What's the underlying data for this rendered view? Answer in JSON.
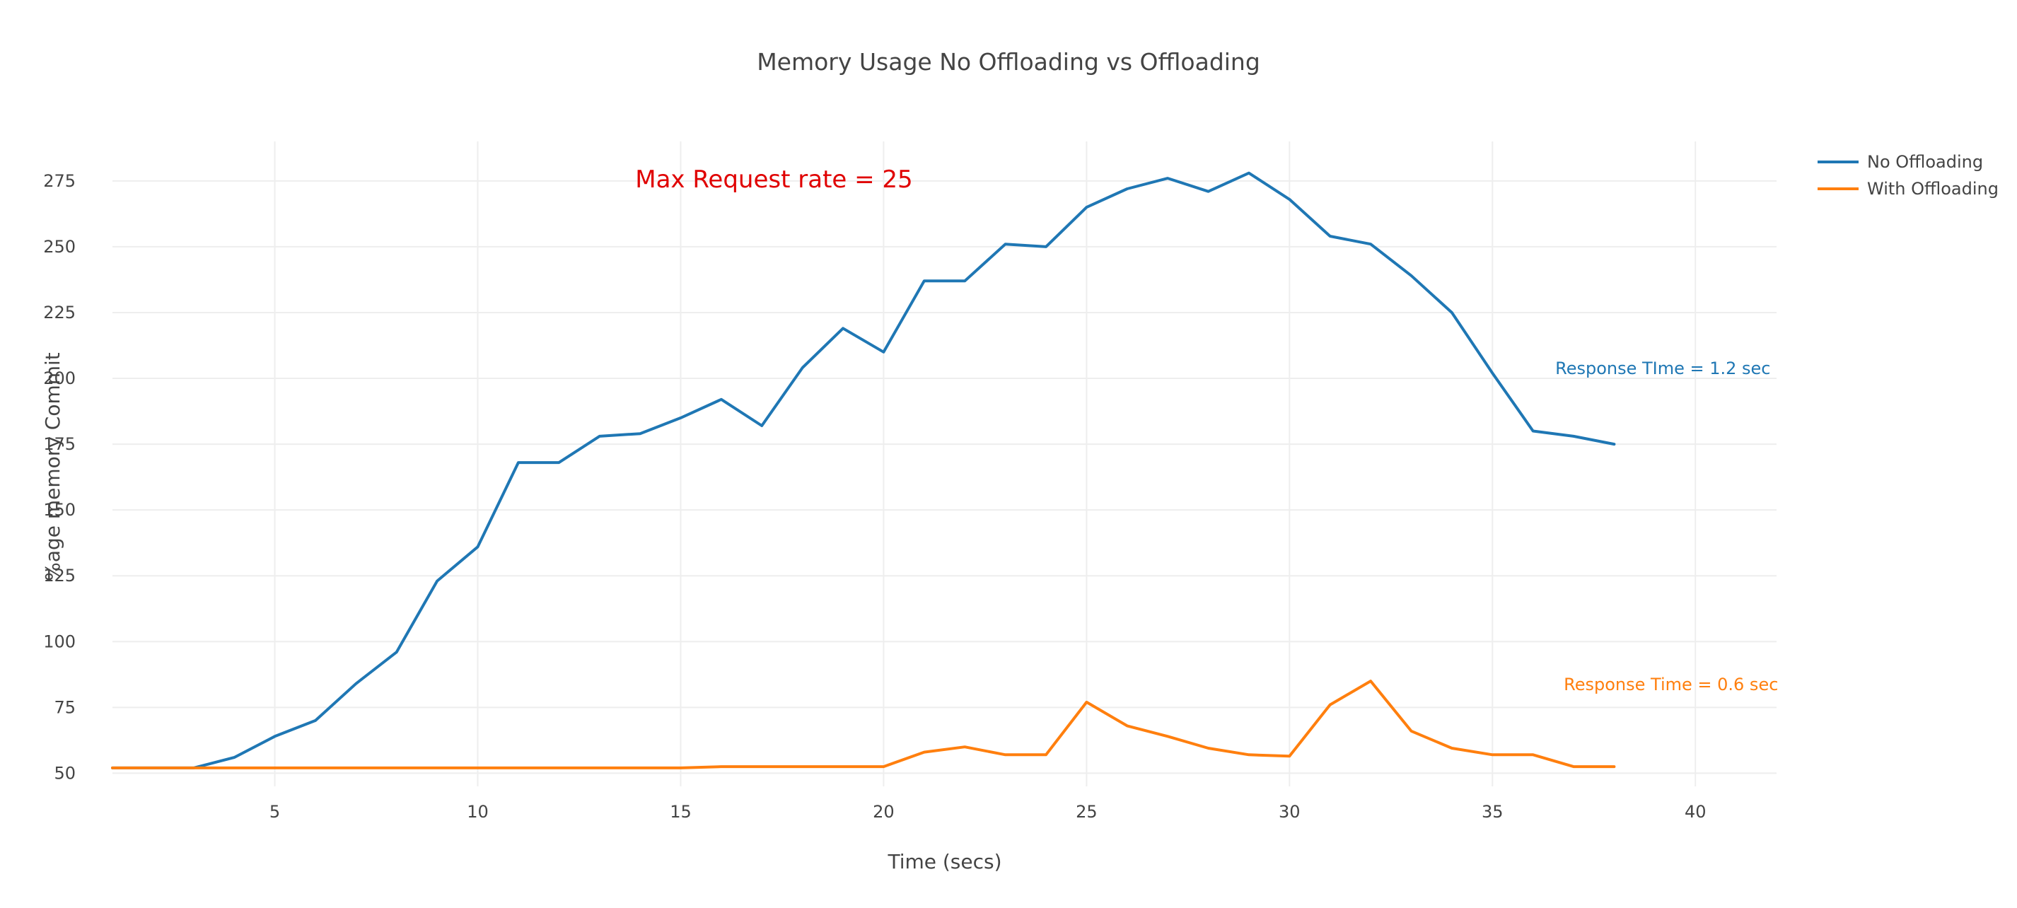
{
  "chart_data": {
    "type": "line",
    "title": "Memory Usage  No Offloading vs Offloading",
    "xlabel": "Time (secs)",
    "ylabel": "%age memory Commit",
    "xlim": [
      1,
      42
    ],
    "ylim": [
      45,
      290
    ],
    "xticks": [
      5,
      10,
      15,
      20,
      25,
      30,
      35,
      40
    ],
    "yticks": [
      50,
      75,
      100,
      125,
      150,
      175,
      200,
      225,
      250,
      275
    ],
    "grid": true,
    "legend_position": "top-right",
    "series": [
      {
        "name": "No Offloading",
        "color": "#1f77b4",
        "x": [
          1,
          2,
          3,
          4,
          5,
          6,
          7,
          8,
          9,
          10,
          11,
          12,
          13,
          14,
          15,
          16,
          17,
          18,
          19,
          20,
          21,
          22,
          23,
          24,
          25,
          26,
          27,
          28,
          29,
          30,
          31,
          32,
          33,
          34,
          35,
          36,
          37,
          38
        ],
        "values": [
          52,
          52,
          52,
          56,
          64,
          70,
          84,
          96,
          123,
          136,
          168,
          168,
          178,
          179,
          185,
          192,
          182,
          204,
          219,
          210,
          237,
          237,
          251,
          250,
          265,
          272,
          276,
          271,
          278,
          268,
          254,
          251,
          239,
          225,
          202,
          180,
          178,
          175
        ]
      },
      {
        "name": "With Offloading",
        "color": "#ff7f0e",
        "x": [
          1,
          2,
          3,
          4,
          5,
          6,
          7,
          8,
          9,
          10,
          11,
          12,
          13,
          14,
          15,
          16,
          17,
          18,
          19,
          20,
          21,
          22,
          23,
          24,
          25,
          26,
          27,
          28,
          29,
          30,
          31,
          32,
          33,
          34,
          35,
          36,
          37,
          38
        ],
        "values": [
          52,
          52,
          52,
          52,
          52,
          52,
          52,
          52,
          52,
          52,
          52,
          52,
          52,
          52,
          52,
          52.5,
          52.5,
          52.5,
          52.5,
          52.5,
          58,
          60,
          57,
          57,
          77,
          68,
          64,
          59.5,
          57,
          56.5,
          76,
          85,
          66,
          59.5,
          57,
          57,
          52.5,
          52.5
        ]
      }
    ],
    "annotations": [
      {
        "text": "Max Request rate = 25",
        "x": 17.3,
        "y": 275,
        "color": "#e00000",
        "size": "big"
      },
      {
        "text": "Response TIme = 1.2 sec",
        "x": 39.2,
        "y": 204,
        "color": "#1f77b4",
        "size": "normal"
      },
      {
        "text": "Response Time = 0.6 sec",
        "x": 39.4,
        "y": 84,
        "color": "#ff7f0e",
        "size": "normal"
      }
    ]
  }
}
